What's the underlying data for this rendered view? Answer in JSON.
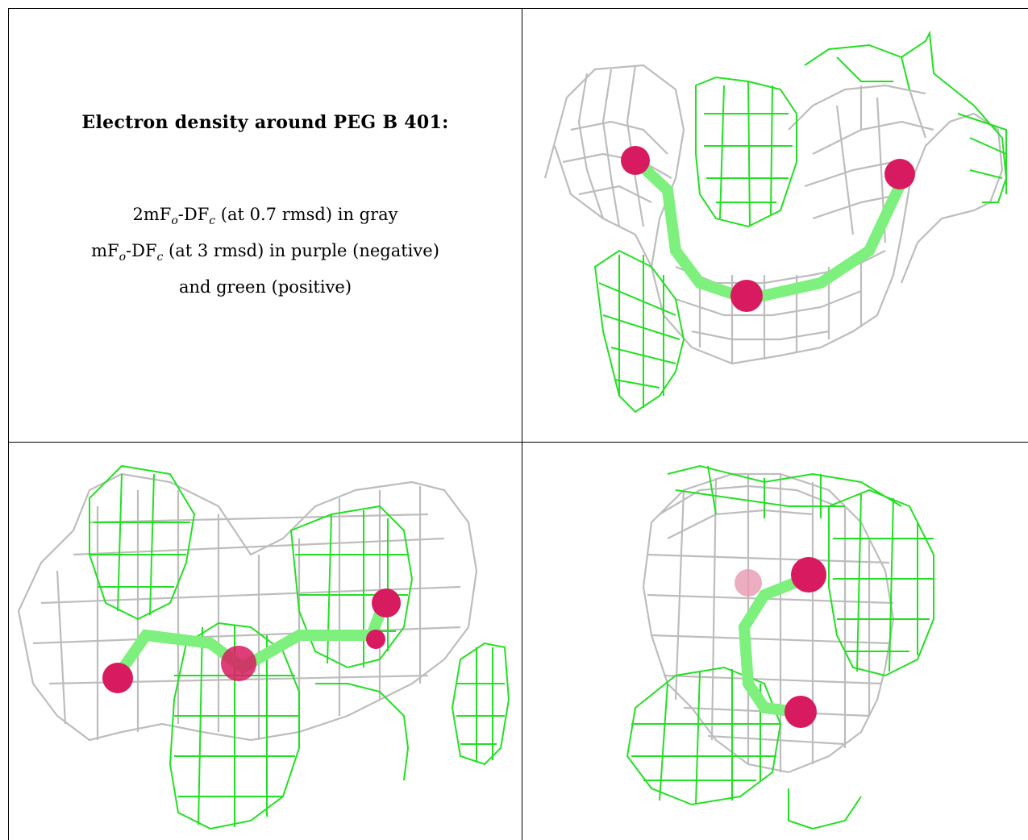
{
  "caption": {
    "title": "Electron density around PEG B 401:",
    "line1": {
      "prefix": "2mF",
      "sub1": "o",
      "mid": "-DF",
      "sub2": "c",
      "suffix": " (at 0.7 rmsd) in gray"
    },
    "line2": {
      "prefix": "mF",
      "sub1": "o",
      "mid": "-DF",
      "sub2": "c",
      "suffix": " (at 3 rmsd) in purple (negative)"
    },
    "line3": "and green (positive)"
  },
  "colors": {
    "map_2fofc": "#bdbdbd",
    "map_fofc_positive": "#22e022",
    "atom_oxygen": "#d81b60",
    "bond": "#7ef07e"
  },
  "views": [
    {
      "name": "view-top-right",
      "description_icon": "electron-density-mesh"
    },
    {
      "name": "view-bottom-left",
      "description_icon": "electron-density-mesh"
    },
    {
      "name": "view-bottom-right",
      "description_icon": "electron-density-mesh"
    }
  ]
}
